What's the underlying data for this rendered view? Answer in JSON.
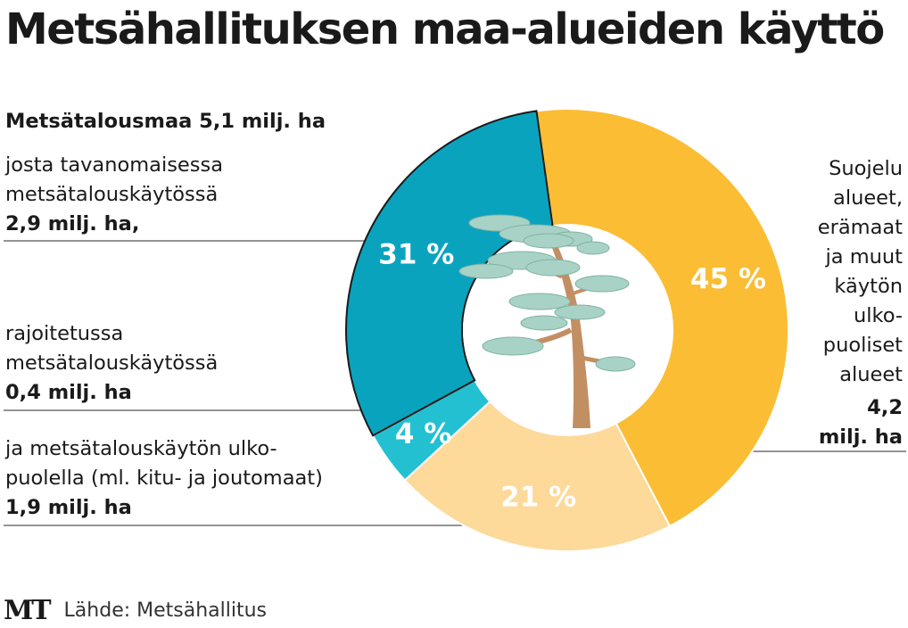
{
  "title": "Metsähallituksen maa-alueiden käyttö",
  "colors": {
    "teal_dark": "#0aa3be",
    "teal_light": "#23c0d2",
    "peach": "#fdd99a",
    "amber": "#fbbd34",
    "trunk": "#c28f63",
    "foliage": "#a9d2c6"
  },
  "labels": {
    "main_head": "Metsätalousmaa 5,1 milj. ha",
    "left1_lines": [
      "josta tavanomaisessa",
      "metsätalouskäytössä"
    ],
    "left1_value": "2,9 milj. ha,",
    "left2_lines": [
      "rajoitetussa",
      "metsätalouskäytössä"
    ],
    "left2_value": "0,4 milj. ha",
    "left3_lines": [
      "ja metsätalouskäytön ulko-",
      "puolella (ml. kitu- ja joutomaat)"
    ],
    "left3_value": "1,9 milj. ha",
    "right_lines": [
      "Suojelu",
      "alueet,",
      "erämaat",
      "ja muut",
      "käytön",
      "ulko-",
      "puoliset",
      "alueet"
    ],
    "right_value_1": "4,2",
    "right_value_2": "milj. ha"
  },
  "footer": {
    "logo": "MT",
    "source": "Lähde: Metsähallitus"
  },
  "chart_data": {
    "type": "pie",
    "donut": true,
    "title": "Metsähallituksen maa-alueiden käyttö",
    "slices": [
      {
        "label": "Suojelualueet, erämaat ja muut käytön ulkopuoliset alueet",
        "value": 45,
        "display": "45 %",
        "amount": "4,2 milj. ha",
        "color": "#fbbd34"
      },
      {
        "label": "ja metsätalouskäytön ulkopuolella (ml. kitu- ja joutomaat)",
        "value": 21,
        "display": "21 %",
        "amount": "1,9 milj. ha",
        "color": "#fdd99a"
      },
      {
        "label": "rajoitetussa metsätalouskäytössä",
        "value": 4,
        "display": "4 %",
        "amount": "0,4 milj. ha",
        "color": "#23c0d2"
      },
      {
        "label": "josta tavanomaisessa metsätalouskäytössä",
        "value": 31,
        "display": "31 %",
        "amount": "2,9 milj. ha",
        "color": "#0aa3be"
      }
    ],
    "start_angle_deg": -8,
    "direction": "clockwise",
    "legend": "none"
  }
}
